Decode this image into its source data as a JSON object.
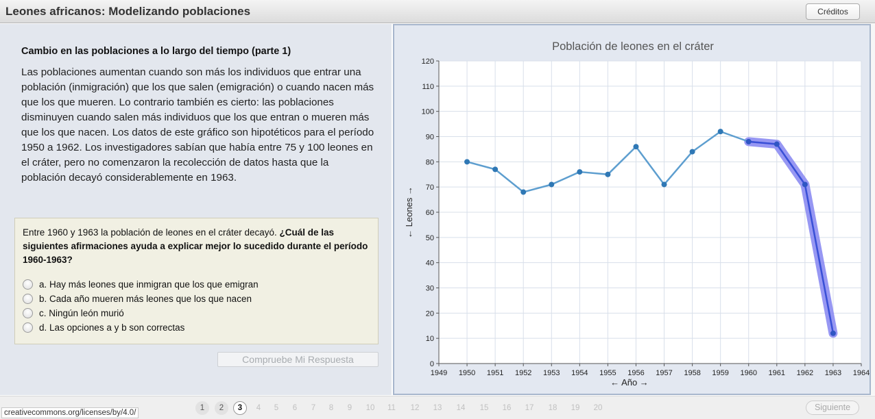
{
  "app": {
    "title": "Leones africanos: Modelizando poblaciones",
    "credits_label": "Créditos"
  },
  "lesson": {
    "section_title": "Cambio en las poblaciones a lo largo del tiempo (parte 1)",
    "intro_text": "Las poblaciones aumentan cuando son más los individuos que entrar una población (inmigración) que los que salen (emigración) o cuando nacen más que los que mueren. Lo contrario también es cierto: las poblaciones disminuyen cuando salen más individuos que los que entran o mueren más que los que nacen. Los datos de este gráfico son hipotéticos para el período 1950 a 1962. Los investigadores sabían que había entre 75 y 100 leones en el cráter, pero no comenzaron la recolección de datos hasta que la población decayó considerablemente en 1963."
  },
  "question": {
    "prompt": "Entre 1960 y 1963 la población de leones en el cráter decayó.",
    "prompt_bold": "¿Cuál de las siguientes afirmaciones ayuda a explicar mejor lo sucedido durante el período 1960-1963?",
    "options": [
      {
        "label": "a. Hay más leones que inmigran que los que emigran"
      },
      {
        "label": "b. Cada año mueren más leones que los que nacen"
      },
      {
        "label": "c. Ningún león murió"
      },
      {
        "label": "d. Las opciones a y b son correctas"
      }
    ],
    "check_label": "Compruebe Mi Respuesta"
  },
  "chart_data": {
    "type": "line",
    "title": "Población de leones en el cráter",
    "xlabel": "← Año →",
    "ylabel": "← Leones →",
    "xlim": [
      1949,
      1964
    ],
    "ylim": [
      0,
      120
    ],
    "x_ticks": [
      1949,
      1950,
      1951,
      1952,
      1953,
      1954,
      1955,
      1956,
      1957,
      1958,
      1959,
      1960,
      1961,
      1962,
      1963,
      1964
    ],
    "y_ticks": [
      0,
      10,
      20,
      30,
      40,
      50,
      60,
      70,
      80,
      90,
      100,
      110,
      120
    ],
    "grid": true,
    "series": [
      {
        "x": [
          1950,
          1951,
          1952,
          1953,
          1954,
          1955,
          1956,
          1957,
          1958,
          1959,
          1960,
          1961,
          1962,
          1963
        ],
        "y": [
          80,
          77,
          68,
          71,
          76,
          75,
          86,
          71,
          84,
          92,
          88,
          87,
          71,
          12
        ],
        "color": "#5d9ecf"
      }
    ],
    "highlight": {
      "x_from": 1960,
      "x_to": 1963,
      "color": "#3b4fd8",
      "band_color": "#8c8cf2"
    }
  },
  "footer": {
    "license": "creativecommons.org/licenses/by/4.0/",
    "pages": [
      "1",
      "2",
      "3",
      "4",
      "5",
      "6",
      "7",
      "8",
      "9",
      "10",
      "11",
      "12",
      "13",
      "14",
      "15",
      "16",
      "17",
      "18",
      "19",
      "20"
    ],
    "current_page": 3,
    "next_label": "Siguiente"
  }
}
